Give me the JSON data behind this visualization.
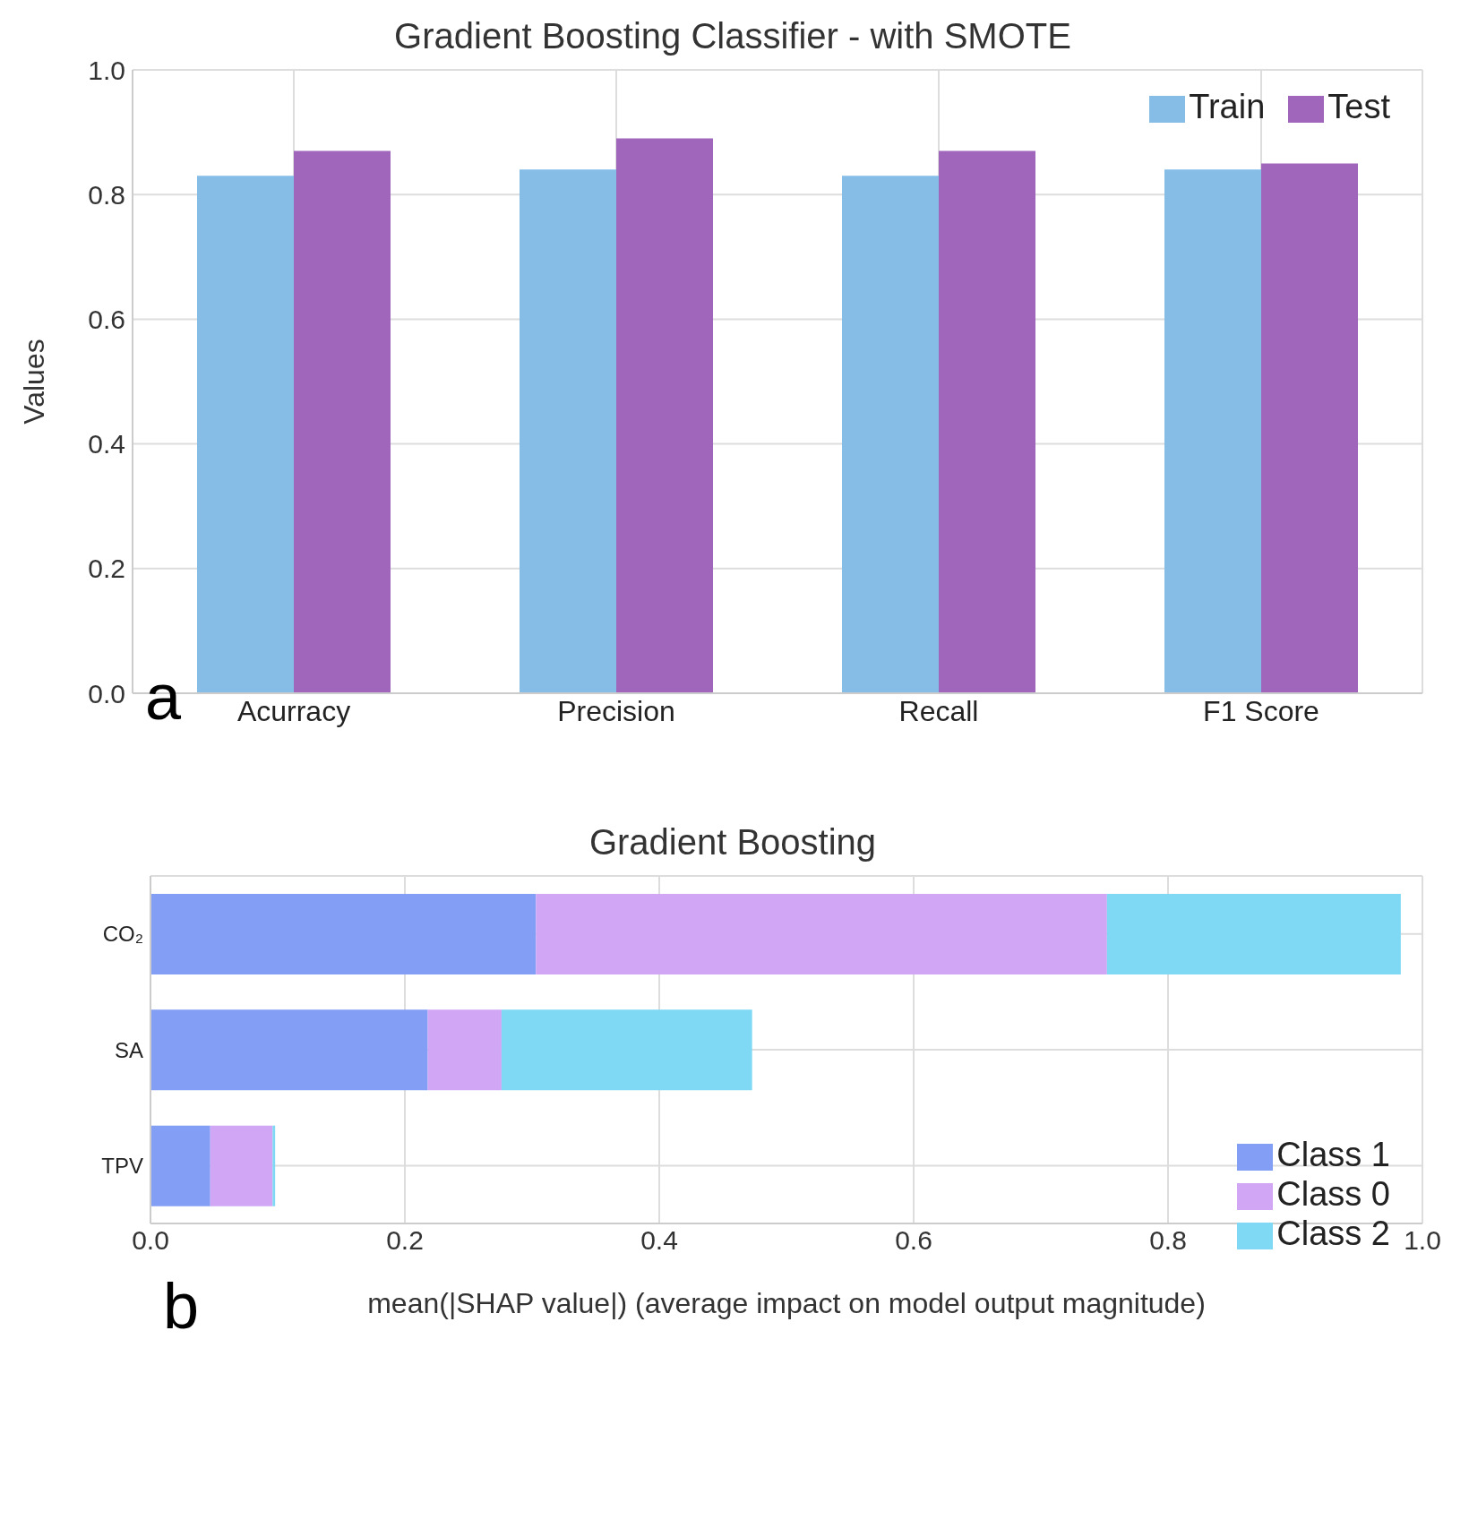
{
  "chart_data": [
    {
      "type": "bar",
      "title": "Gradient Boosting Classifier - with SMOTE",
      "ylabel": "Values",
      "categories": [
        "Acurracy",
        "Precision",
        "Recall",
        "F1 Score"
      ],
      "series": [
        {
          "name": "Train",
          "color": "#85bde6",
          "values": [
            0.83,
            0.84,
            0.83,
            0.84
          ]
        },
        {
          "name": "Test",
          "color": "#a066bb",
          "values": [
            0.87,
            0.89,
            0.87,
            0.85
          ]
        }
      ],
      "ylim": [
        0,
        1
      ],
      "yticks": [
        {
          "value": 0,
          "label": "0.0"
        },
        {
          "value": 0.2,
          "label": "0.2"
        },
        {
          "value": 0.4,
          "label": "0.4"
        },
        {
          "value": 0.6,
          "label": "0.6"
        },
        {
          "value": 0.8,
          "label": "0.8"
        },
        {
          "value": 1,
          "label": "1.0"
        }
      ],
      "grid": true,
      "legend": "top right",
      "annotations": [
        "a"
      ]
    },
    {
      "type": "bar",
      "orientation": "horizontal",
      "stacked": true,
      "title": "Gradient Boosting",
      "xlabel": "mean(|SHAP value|) (average impact on model output magnitude)",
      "categories": [
        "CO₂",
        "SA",
        "TPV"
      ],
      "series": [
        {
          "name": "Class 1",
          "color": "#839ef5",
          "values": [
            0.303,
            0.218,
            0.047
          ]
        },
        {
          "name": "Class 0",
          "color": "#d0a6f5",
          "values": [
            0.449,
            0.058,
            0.049
          ]
        },
        {
          "name": "Class 2",
          "color": "#7fd9f5",
          "values": [
            0.231,
            0.197,
            0.002
          ]
        }
      ],
      "xlim": [
        0,
        1
      ],
      "xticks": [
        {
          "value": 0,
          "label": "0.0"
        },
        {
          "value": 0.2,
          "label": "0.2"
        },
        {
          "value": 0.4,
          "label": "0.4"
        },
        {
          "value": 0.6,
          "label": "0.6"
        },
        {
          "value": 0.8,
          "label": "0.8"
        },
        {
          "value": 1,
          "label": "1.0"
        }
      ],
      "grid": true,
      "legend": "bottom right",
      "annotations": [
        "b"
      ]
    }
  ]
}
